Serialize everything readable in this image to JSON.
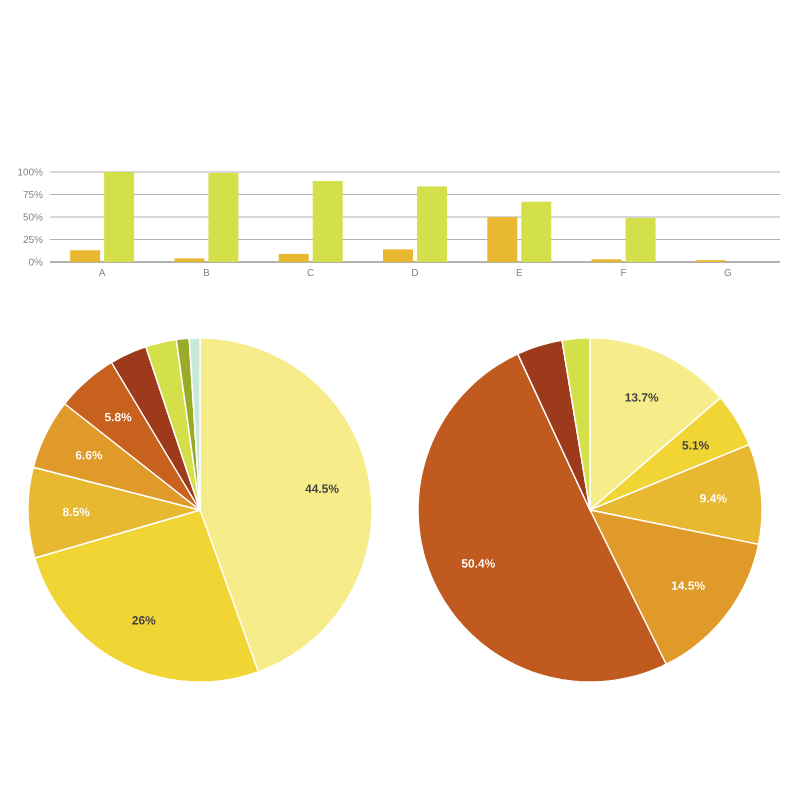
{
  "chart_data": [
    {
      "type": "bar",
      "categories": [
        "A",
        "B",
        "C",
        "D",
        "E",
        "F",
        "G"
      ],
      "series": [
        {
          "color": "#e8b830",
          "values": [
            13,
            4,
            9,
            14,
            50,
            3,
            2
          ]
        },
        {
          "color": "#d4e04a",
          "values": [
            100,
            99,
            90,
            84,
            67,
            49,
            0
          ]
        }
      ],
      "ylim": [
        0,
        100
      ],
      "yticks": [
        {
          "value": 0,
          "label": "0%"
        },
        {
          "value": 25,
          "label": "25%"
        },
        {
          "value": 50,
          "label": "50%"
        },
        {
          "value": 75,
          "label": "75%"
        },
        {
          "value": 100,
          "label": "100%"
        }
      ],
      "grid": "y"
    },
    {
      "type": "pie",
      "categories": [
        null,
        null,
        null,
        null,
        null,
        null,
        null,
        null,
        null
      ],
      "values": [
        44.5,
        26,
        8.5,
        6.6,
        5.8,
        3.5,
        2.9,
        1.2,
        1.0
      ],
      "colors": [
        "#f7ec8a",
        "#f0d535",
        "#e8b830",
        "#e09a2a",
        "#c8601e",
        "#9e3a1c",
        "#d4e04a",
        "#9aab2a",
        "#c8e8d8"
      ],
      "value_labels": [
        "44.5%",
        "26%",
        "8.5%",
        "6.6%",
        "5.8%",
        null,
        null,
        null,
        null
      ]
    },
    {
      "type": "pie",
      "categories": [
        null,
        null,
        null,
        null,
        null,
        null,
        null
      ],
      "values": [
        13.7,
        5.1,
        9.4,
        14.5,
        50.4,
        4.3,
        2.6
      ],
      "colors": [
        "#f7ec8a",
        "#f0d535",
        "#e8b830",
        "#e09a2a",
        "#c05a1e",
        "#9e3a1c",
        "#d4e04a"
      ],
      "value_labels": [
        "13.7%",
        "5.1%",
        "9.4%",
        "14.5%",
        "50.4%",
        null,
        null
      ]
    }
  ]
}
